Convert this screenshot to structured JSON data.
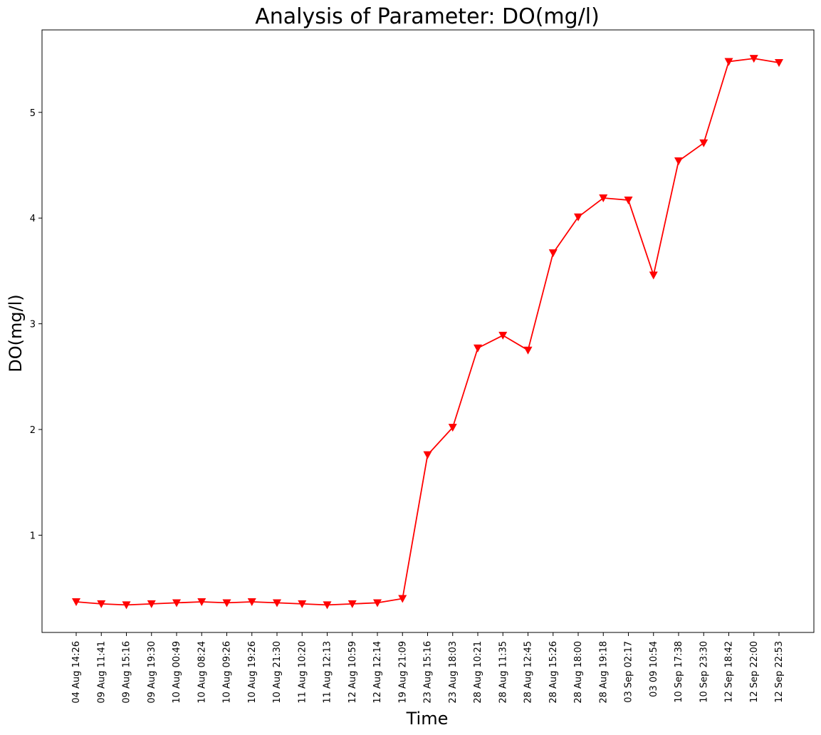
{
  "chart_data": {
    "type": "line",
    "title": "Analysis of Parameter: DO(mg/l)",
    "xlabel": "Time",
    "ylabel": "DO(mg/l)",
    "ylim": [
      0.08,
      5.78
    ],
    "yticks": [
      1,
      2,
      3,
      4,
      5
    ],
    "grid": false,
    "legend": "none",
    "colors": {
      "series": "#ff0000",
      "marker": "#ff0000"
    },
    "x": [
      "04 Aug 14:26",
      "09 Aug 11:41",
      "09 Aug 15:16",
      "09 Aug 19:30",
      "10 Aug 00:49",
      "10 Aug 08:24",
      "10 Aug 09:26",
      "10 Aug 19:26",
      "10 Aug 21:30",
      "11 Aug 10:20",
      "11 Aug 12:13",
      "12 Aug 10:59",
      "12 Aug 12:14",
      "19 Aug 21:09",
      "23 Aug 15:16",
      "23 Aug 18:03",
      "28 Aug 10:21",
      "28 Aug 11:35",
      "28 Aug 12:45",
      "28 Aug 15:26",
      "28 Aug 18:00",
      "28 Aug 19:18",
      "03 Sep 02:17",
      "03 09 10:54",
      "10 Sep 17:38",
      "10 Sep 23:30",
      "12 Sep 18:42",
      "12 Sep 22:00",
      "12 Sep 22:53"
    ],
    "series": [
      {
        "values": [
          0.37,
          0.35,
          0.34,
          0.35,
          0.36,
          0.37,
          0.36,
          0.37,
          0.36,
          0.35,
          0.34,
          0.35,
          0.36,
          0.4,
          1.76,
          2.02,
          2.77,
          2.89,
          2.75,
          3.67,
          4.01,
          4.19,
          4.17,
          3.46,
          4.54,
          4.71,
          5.48,
          5.51,
          5.47
        ]
      }
    ]
  }
}
